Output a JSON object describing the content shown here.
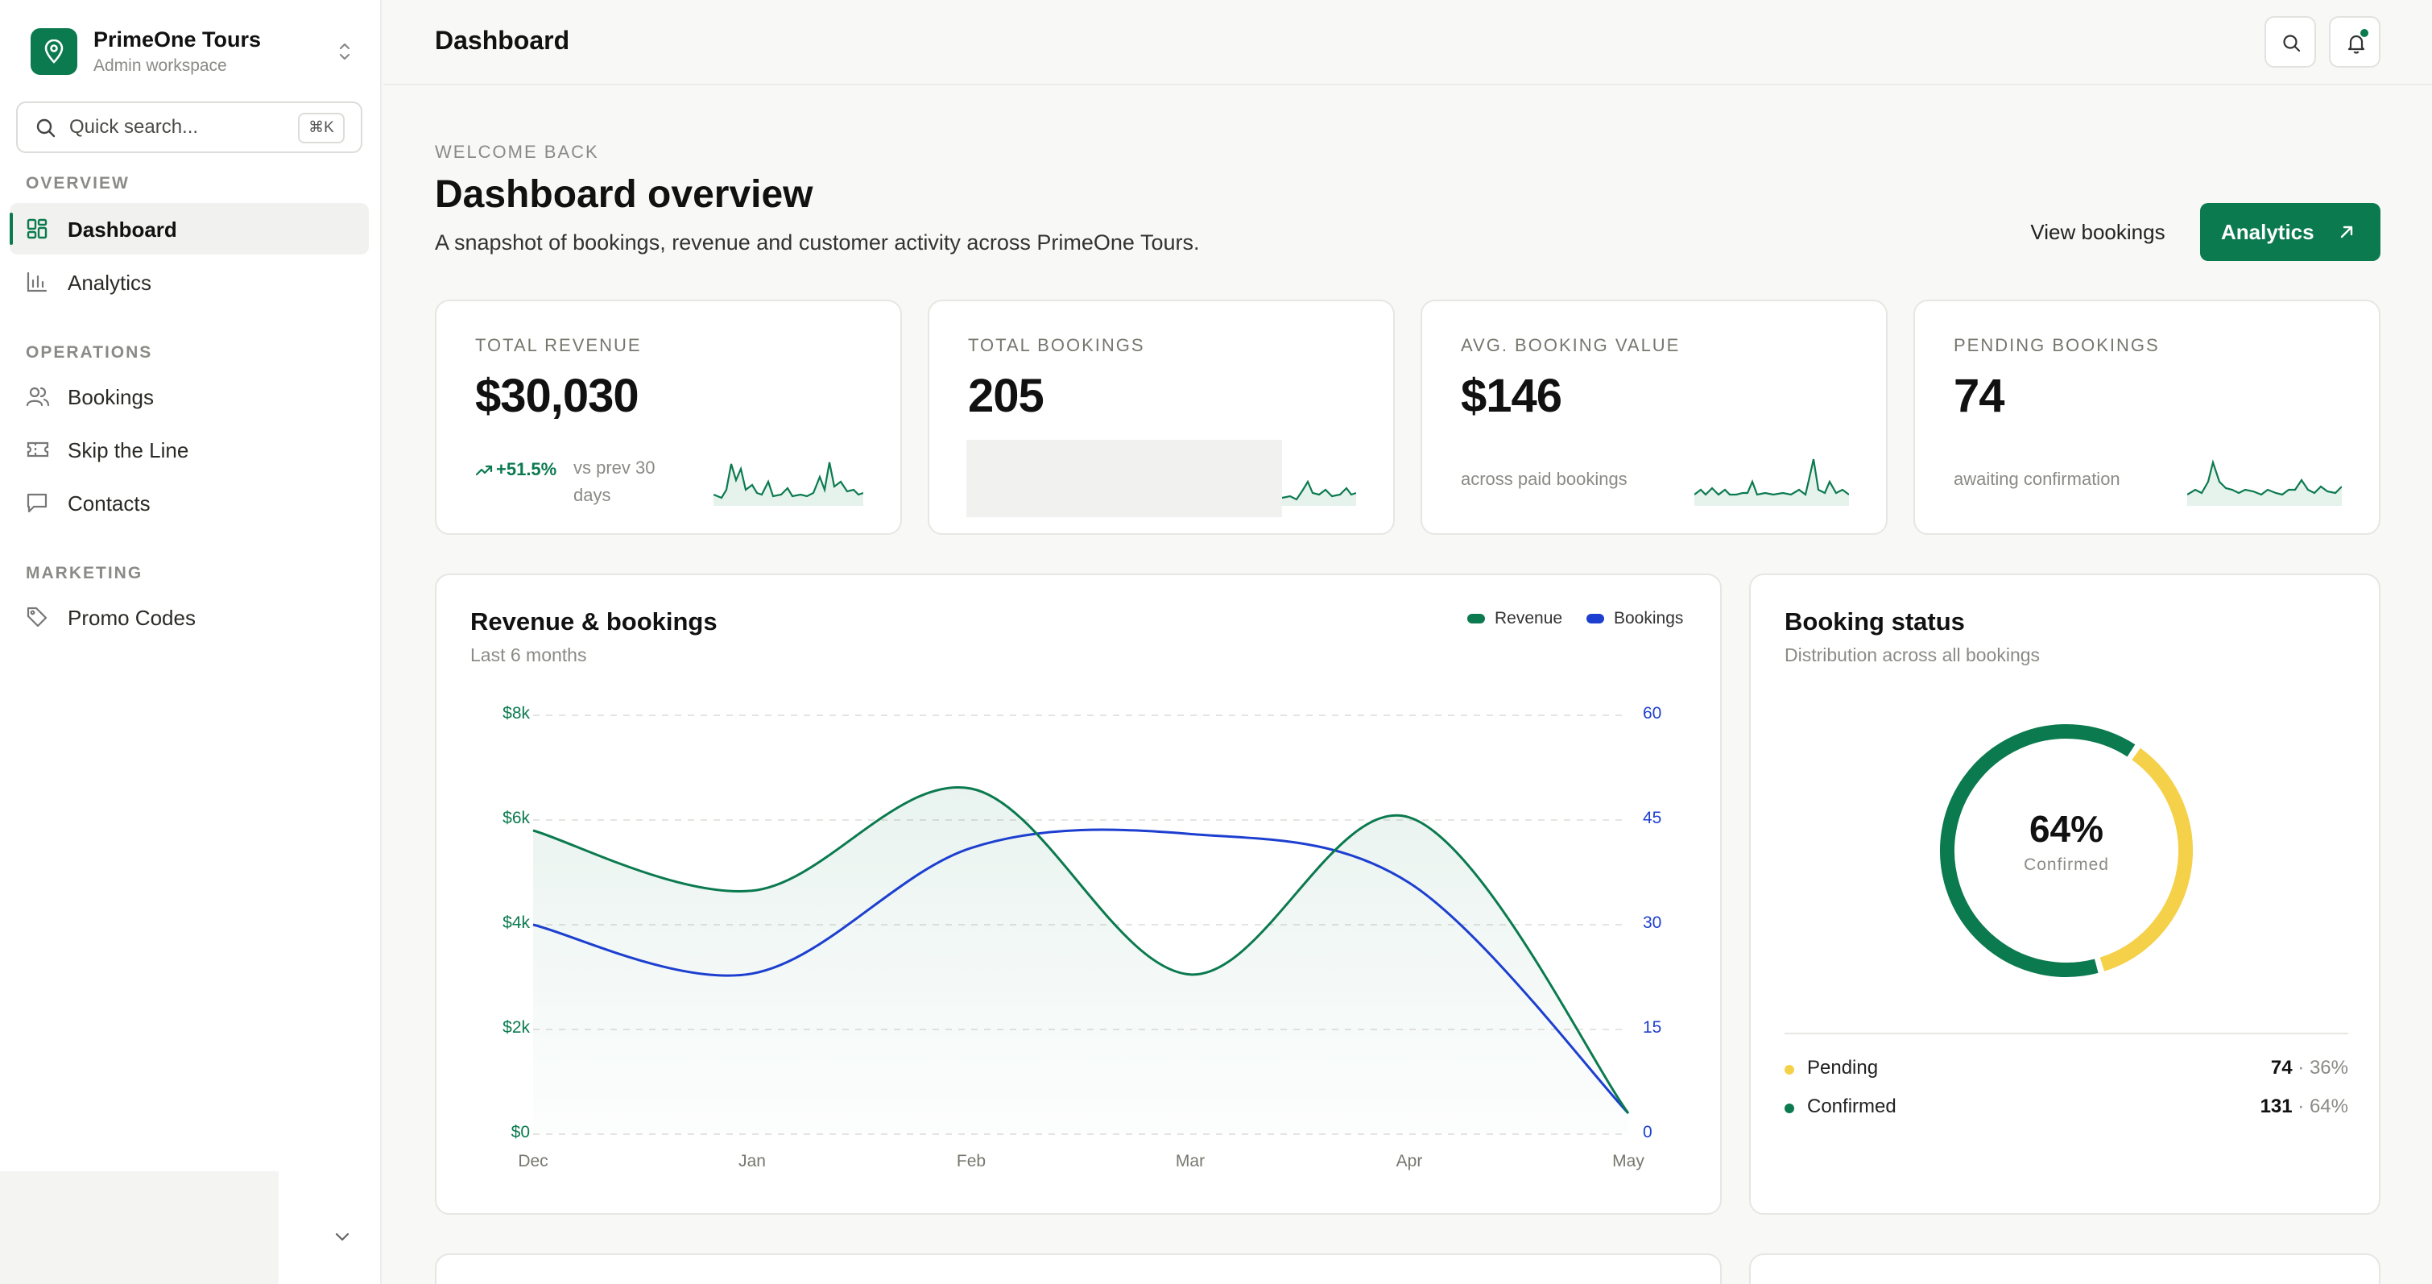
{
  "brand": {
    "name": "PrimeOne Tours",
    "workspace": "Admin workspace"
  },
  "search": {
    "placeholder": "Quick search...",
    "shortcut": "⌘K"
  },
  "sidebar": {
    "sections": [
      {
        "title": "OVERVIEW"
      },
      {
        "title": "OPERATIONS"
      },
      {
        "title": "MARKETING"
      }
    ],
    "items": [
      {
        "label": "Dashboard",
        "icon": "grid-icon",
        "active": true
      },
      {
        "label": "Analytics",
        "icon": "bar-chart-icon"
      },
      {
        "label": "Bookings",
        "icon": "users-icon"
      },
      {
        "label": "Skip the Line",
        "icon": "ticket-icon"
      },
      {
        "label": "Contacts",
        "icon": "chat-icon"
      },
      {
        "label": "Promo Codes",
        "icon": "tag-icon"
      }
    ]
  },
  "topbar": {
    "title": "Dashboard"
  },
  "header": {
    "eyebrow": "WELCOME BACK",
    "title": "Dashboard overview",
    "description": "A snapshot of bookings, revenue and customer activity across PrimeOne Tours.",
    "view_bookings": "View bookings",
    "analytics": "Analytics"
  },
  "kpis": [
    {
      "label": "TOTAL REVENUE",
      "value": "$30,030",
      "trend": "+51.5%",
      "trend_note": "vs prev 30 days"
    },
    {
      "label": "TOTAL BOOKINGS",
      "value": "205"
    },
    {
      "label": "AVG. BOOKING VALUE",
      "value": "$146",
      "note": "across paid bookings"
    },
    {
      "label": "PENDING BOOKINGS",
      "value": "74",
      "note": "awaiting confirmation"
    }
  ],
  "colors": {
    "accent": "#0b7a4f",
    "bookings": "#1d3fd0",
    "pending": "#f5d14a"
  },
  "chart_data": [
    {
      "type": "line",
      "title": "Revenue & bookings",
      "subtitle": "Last 6 months",
      "categories": [
        "Dec",
        "Jan",
        "Feb",
        "Mar",
        "Apr",
        "May"
      ],
      "series": [
        {
          "name": "Revenue",
          "axis": "left",
          "values": [
            5800,
            4650,
            6600,
            3050,
            6050,
            400
          ]
        },
        {
          "name": "Bookings",
          "axis": "right",
          "values": [
            30,
            23,
            41,
            43,
            36,
            3
          ]
        }
      ],
      "y_left": {
        "ticks": [
          "$0",
          "$2k",
          "$4k",
          "$6k",
          "$8k"
        ],
        "range": [
          0,
          8000
        ]
      },
      "y_right": {
        "ticks": [
          "0",
          "15",
          "30",
          "45",
          "60"
        ],
        "range": [
          0,
          60
        ]
      },
      "legend": "top-right",
      "grid": true
    },
    {
      "type": "pie",
      "title": "Booking status",
      "subtitle": "Distribution across all bookings",
      "center_value": "64%",
      "center_label": "Confirmed",
      "slices": [
        {
          "name": "Pending",
          "count": "74",
          "percent": "36%",
          "value": 36
        },
        {
          "name": "Confirmed",
          "count": "131",
          "percent": "64%",
          "value": 64
        }
      ]
    }
  ]
}
